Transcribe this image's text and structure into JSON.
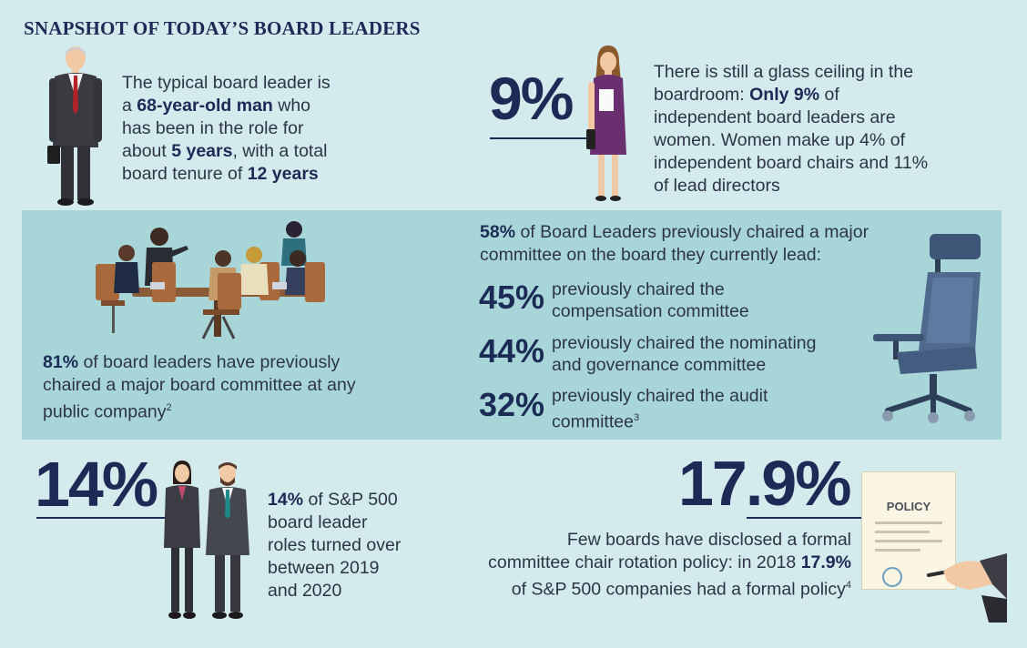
{
  "title": "SNAPSHOT OF TODAY’S BOARD LEADERS",
  "typical": {
    "line1": "The typical board leader is",
    "line2_pre": "a ",
    "line2_bold": "68-year-old man",
    "line2_post": " who",
    "line3": "has been in the role for",
    "line4_pre": "about ",
    "line4_bold": "5 years",
    "line4_post": ", with a total",
    "line5_pre": "board tenure of ",
    "line5_bold": "12 years"
  },
  "women": {
    "big": "9%",
    "line1": "There is still a glass ceiling in the",
    "line2_pre": "boardroom: ",
    "line2_bold": "Only 9%",
    "line2_post": " of",
    "line3": "independent board leaders are",
    "line4": "women. Women make up 4% of",
    "line5": "independent board chairs and 11%",
    "line6": "of lead directors"
  },
  "committee": {
    "intro_bold": "58%",
    "intro_rest": " of Board Leaders previously chaired a major",
    "intro_line2": "committee on the board they currently lead:",
    "rows": [
      {
        "pct": "45%",
        "l1": "previously chaired the",
        "l2": "compensation committee"
      },
      {
        "pct": "44%",
        "l1": "previously chaired the nominating",
        "l2": "and governance committee"
      },
      {
        "pct": "32%",
        "l1": "previously chaired the audit",
        "l2": "committee",
        "sup": "3"
      }
    ]
  },
  "any_company": {
    "bold": "81%",
    "l1_rest": " of board leaders have previously",
    "l2": "chaired a major board committee at any",
    "l3": "public company",
    "sup": "2"
  },
  "turnover": {
    "big": "14%",
    "bold": "14%",
    "l1_rest": " of S&P 500",
    "l2": "board leader",
    "l3": "roles turned over",
    "l4": "between 2019",
    "l5": "and 2020"
  },
  "rotation": {
    "big": "17.9%",
    "l1": "Few boards have disclosed a formal",
    "l2_pre": "committee chair rotation policy: in 2018 ",
    "l2_bold": "17.9%",
    "l3": "of S&P 500 companies had a formal policy",
    "sup": "4",
    "policy_label": "POLICY"
  },
  "colors": {
    "background": "#d4ebee",
    "band": "#a8d6d8",
    "navy": "#1b2b55",
    "text": "#2c3446"
  }
}
